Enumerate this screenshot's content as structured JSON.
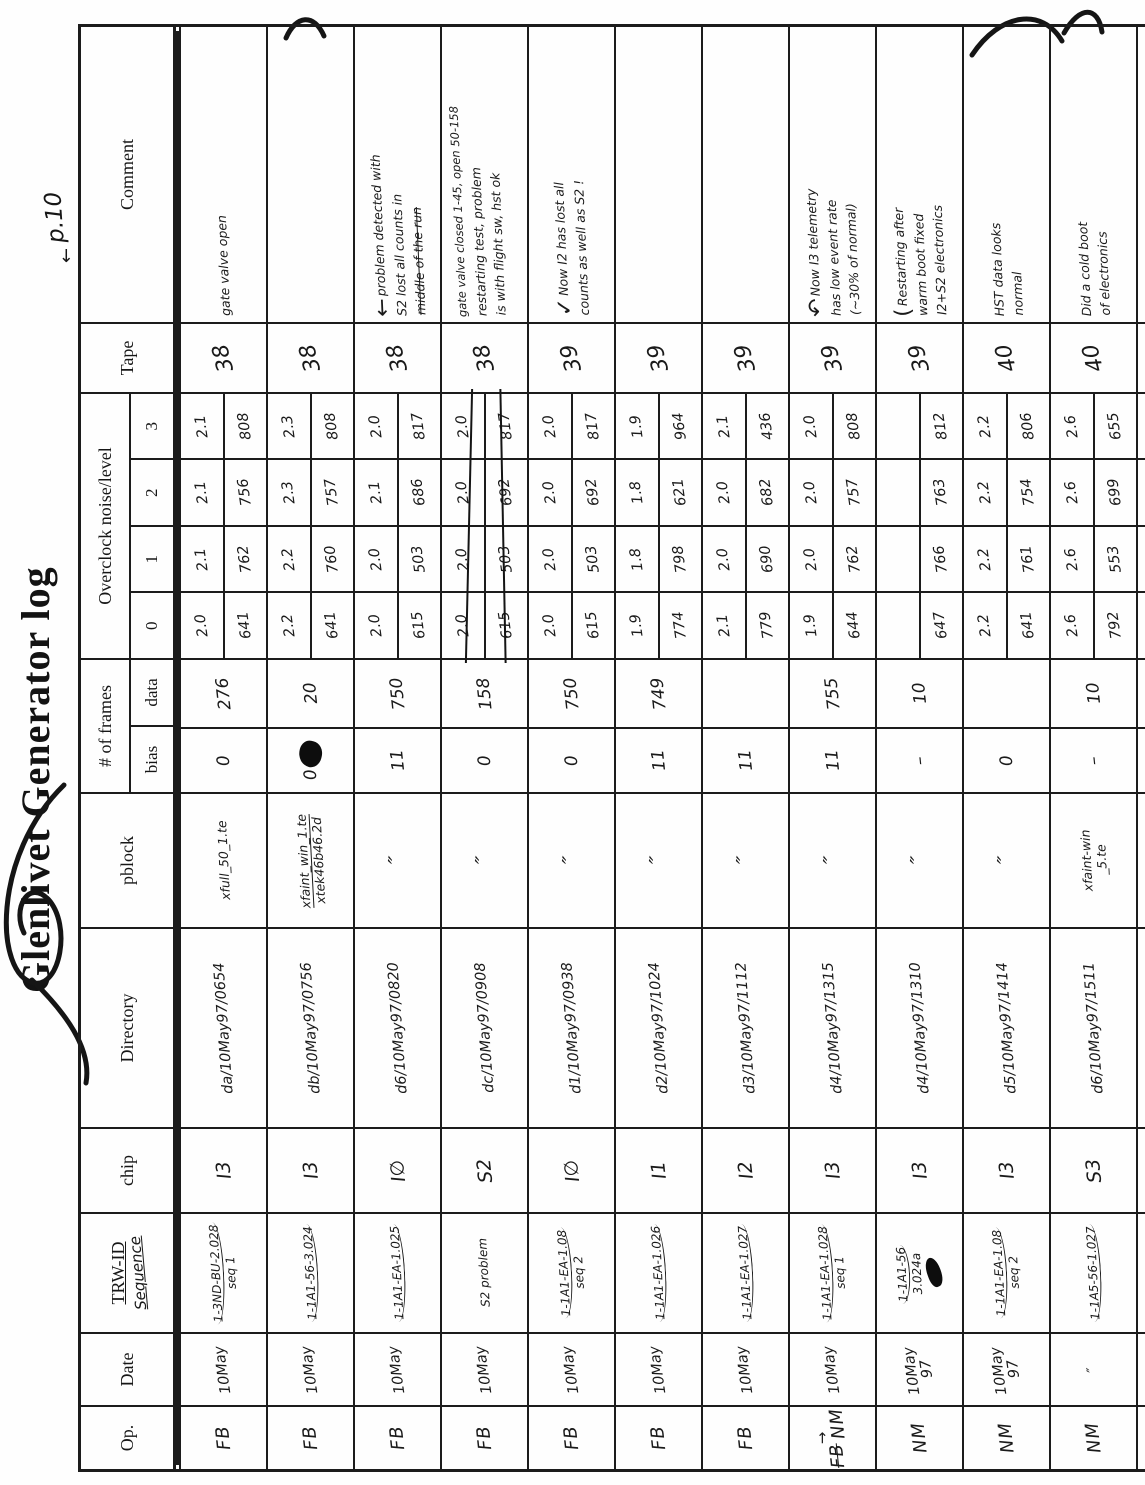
{
  "title": "Glenlivet Generator log",
  "page_label": "p.10",
  "page_label_arrow": "←",
  "headers": {
    "op": "Op.",
    "date": "Date",
    "trw_id": "TRW-ID",
    "sequence": "Sequence",
    "chip": "chip",
    "directory": "Directory",
    "pblock": "pblock",
    "frames": "# of frames",
    "bias": "bias",
    "data": "data",
    "noise": "Overclock noise/level",
    "noise_subs": [
      "0",
      "1",
      "2",
      "3"
    ],
    "tape": "Tape",
    "comment": "Comment"
  },
  "rows": [
    {
      "op": "FB",
      "date": [
        "10May"
      ],
      "trw": [
        "1-3ND-BU-2.028",
        "seq 1"
      ],
      "chip": "I3",
      "dir": "da/10May97/0654",
      "pblock": [
        "xfull_50_1.te"
      ],
      "bias": "0",
      "frames_data": "276",
      "noise": [
        "2.0",
        "2.1",
        "2.1",
        "2.1"
      ],
      "level": [
        "641",
        "762",
        "756",
        "808"
      ],
      "tape": "38",
      "comment": [
        "gate valve open"
      ],
      "cpre": ""
    },
    {
      "op": "FB",
      "date": [
        "10May"
      ],
      "trw": [
        "1-1A1-56-3.024"
      ],
      "chip": "I3",
      "dir": "db/10May97/0756",
      "pblock": [
        "xfaint_win_1.te",
        "xtek46b46.2d"
      ],
      "pblock_first_underlined": true,
      "bias": "0",
      "bias_blob": true,
      "frames_data": "20",
      "noise": [
        "2.2",
        "2.2",
        "2.3",
        "2.3"
      ],
      "level": [
        "641",
        "760",
        "757",
        "808"
      ],
      "tape": "38",
      "comment": [],
      "cpre": ""
    },
    {
      "op": "FB",
      "date": [
        "10May"
      ],
      "trw": [
        "1-1A1-EA-1.025"
      ],
      "chip": "I∅",
      "dir": "d6/10May97/0820",
      "pblock": [
        "″"
      ],
      "bias": "11",
      "frames_data": "750",
      "noise": [
        "2.0",
        "2.0",
        "2.1",
        "2.0"
      ],
      "level": [
        "615",
        "503",
        "686",
        "817"
      ],
      "tape": "38",
      "comment": [
        "problem detected with",
        "S2 lost all counts in",
        "middle of the run"
      ],
      "cpre": "←",
      "comment_last_struck": true
    },
    {
      "op": "FB",
      "date": [
        "10May"
      ],
      "trw": [
        "S2 problem"
      ],
      "trw_plain": true,
      "chip": "S2",
      "dir": "dc/10May97/0908",
      "pblock": [
        "″"
      ],
      "bias": "0",
      "frames_data": "158",
      "noise": [
        "2.0",
        "2.0",
        "2.0",
        "2.0"
      ],
      "level": [
        "615",
        "503",
        "692",
        "817"
      ],
      "noise_struck": true,
      "tape": "38",
      "comment": [
        "gate valve closed 1-45, open 50-158",
        "restarting test, problem",
        "is with flight sw, hst ok"
      ],
      "cpre": "",
      "comment_first_raised": true
    },
    {
      "op": "FB",
      "date": [
        "10May"
      ],
      "trw": [
        "1-1A1-EA-1.08",
        "seq 2"
      ],
      "chip": "I∅",
      "dir": "d1/10May97/0938",
      "pblock": [
        "″"
      ],
      "bias": "0",
      "frames_data": "750",
      "noise": [
        "2.0",
        "2.0",
        "2.0",
        "2.0"
      ],
      "level": [
        "615",
        "503",
        "692",
        "817"
      ],
      "tape": "39",
      "comment": [
        "Now I2 has lost all",
        "counts as well as S2 !"
      ],
      "cpre": "✓"
    },
    {
      "op": "FB",
      "date": [
        "10May"
      ],
      "trw": [
        "1-1A1-EA-1.026"
      ],
      "chip": "I1",
      "dir": "d2/10May97/1024",
      "pblock": [
        "″"
      ],
      "bias": "11",
      "frames_data": "749",
      "noise": [
        "1.9",
        "1.8",
        "1.8",
        "1.9"
      ],
      "level": [
        "774",
        "798",
        "621",
        "964"
      ],
      "tape": "39",
      "comment": [],
      "cpre": ""
    },
    {
      "op": "FB",
      "date": [
        "10May"
      ],
      "trw": [
        "1-1A1-EA-1.027"
      ],
      "chip": "I2",
      "dir": "d3/10May97/1112",
      "pblock": [
        "″"
      ],
      "bias": "11",
      "frames_data": "",
      "noise": [
        "2.1",
        "2.0",
        "2.0",
        "2.1"
      ],
      "level": [
        "779",
        "690",
        "682",
        "436"
      ],
      "tape": "39",
      "comment": [],
      "cpre": ""
    },
    {
      "op": "NM",
      "op_struck": "FB",
      "op_arrow": "→",
      "date": [
        "10May"
      ],
      "trw": [
        "1-1A1-EA-1.028",
        "seq 1"
      ],
      "chip": "I3",
      "dir": "d4/10May97/1315",
      "pblock": [
        "″"
      ],
      "bias": "11",
      "frames_data": "755",
      "noise": [
        "1.9",
        "2.0",
        "2.0",
        "2.0"
      ],
      "level": [
        "644",
        "762",
        "757",
        "808"
      ],
      "tape": "39",
      "comment": [
        "Now I3 telemetry",
        "has low event rate",
        "(~30% of normal)"
      ],
      "cpre": "↶"
    },
    {
      "op": "NM",
      "date": [
        "10May",
        "97"
      ],
      "trw": [
        "1-1A1-56",
        "3.024a"
      ],
      "trw_blob": true,
      "chip": "I3",
      "dir": "d4/10May97/1310",
      "pblock": [
        "″"
      ],
      "bias": "–",
      "frames_data": "10",
      "noise": [
        "",
        "",
        "",
        ""
      ],
      "level": [
        "647",
        "766",
        "763",
        "812"
      ],
      "tape": "39",
      "comment": [
        "Restarting after",
        "warm boot fixed",
        "I2+S2 electronics"
      ],
      "cpre": "("
    },
    {
      "op": "NM",
      "date": [
        "10May",
        "97"
      ],
      "trw": [
        "1-1A1-EA-1.08",
        "seq 2"
      ],
      "chip": "I3",
      "dir": "d5/10May97/1414",
      "pblock": [
        "″"
      ],
      "bias": "0",
      "frames_data": "",
      "noise": [
        "2.2",
        "2.2",
        "2.2",
        "2.2"
      ],
      "level": [
        "641",
        "761",
        "754",
        "806"
      ],
      "tape": "40",
      "comment": [
        "HST data looks",
        "normal"
      ],
      "cpre": ""
    },
    {
      "op": "NM",
      "date": [
        "″"
      ],
      "trw": [
        "1-1A5-56-1.027"
      ],
      "chip": "S3",
      "dir": "d6/10May97/1511",
      "pblock": [
        "xfaint-win",
        "_5.te"
      ],
      "bias": "–",
      "frames_data": "10",
      "noise": [
        "2.6",
        "2.6",
        "2.6",
        "2.6"
      ],
      "level": [
        "792",
        "553",
        "699",
        "655"
      ],
      "tape": "40",
      "comment": [
        "Did a cold boot",
        "of electronics"
      ],
      "cpre": ""
    },
    {
      "op": "",
      "date": [],
      "trw": [],
      "chip": "",
      "dir": "",
      "pblock": [],
      "bias": "",
      "frames_data": "",
      "noise": [
        "",
        "",
        "",
        ""
      ],
      "level": [
        "",
        "",
        "",
        ""
      ],
      "tape": "",
      "comment": [],
      "cpre": ""
    }
  ]
}
